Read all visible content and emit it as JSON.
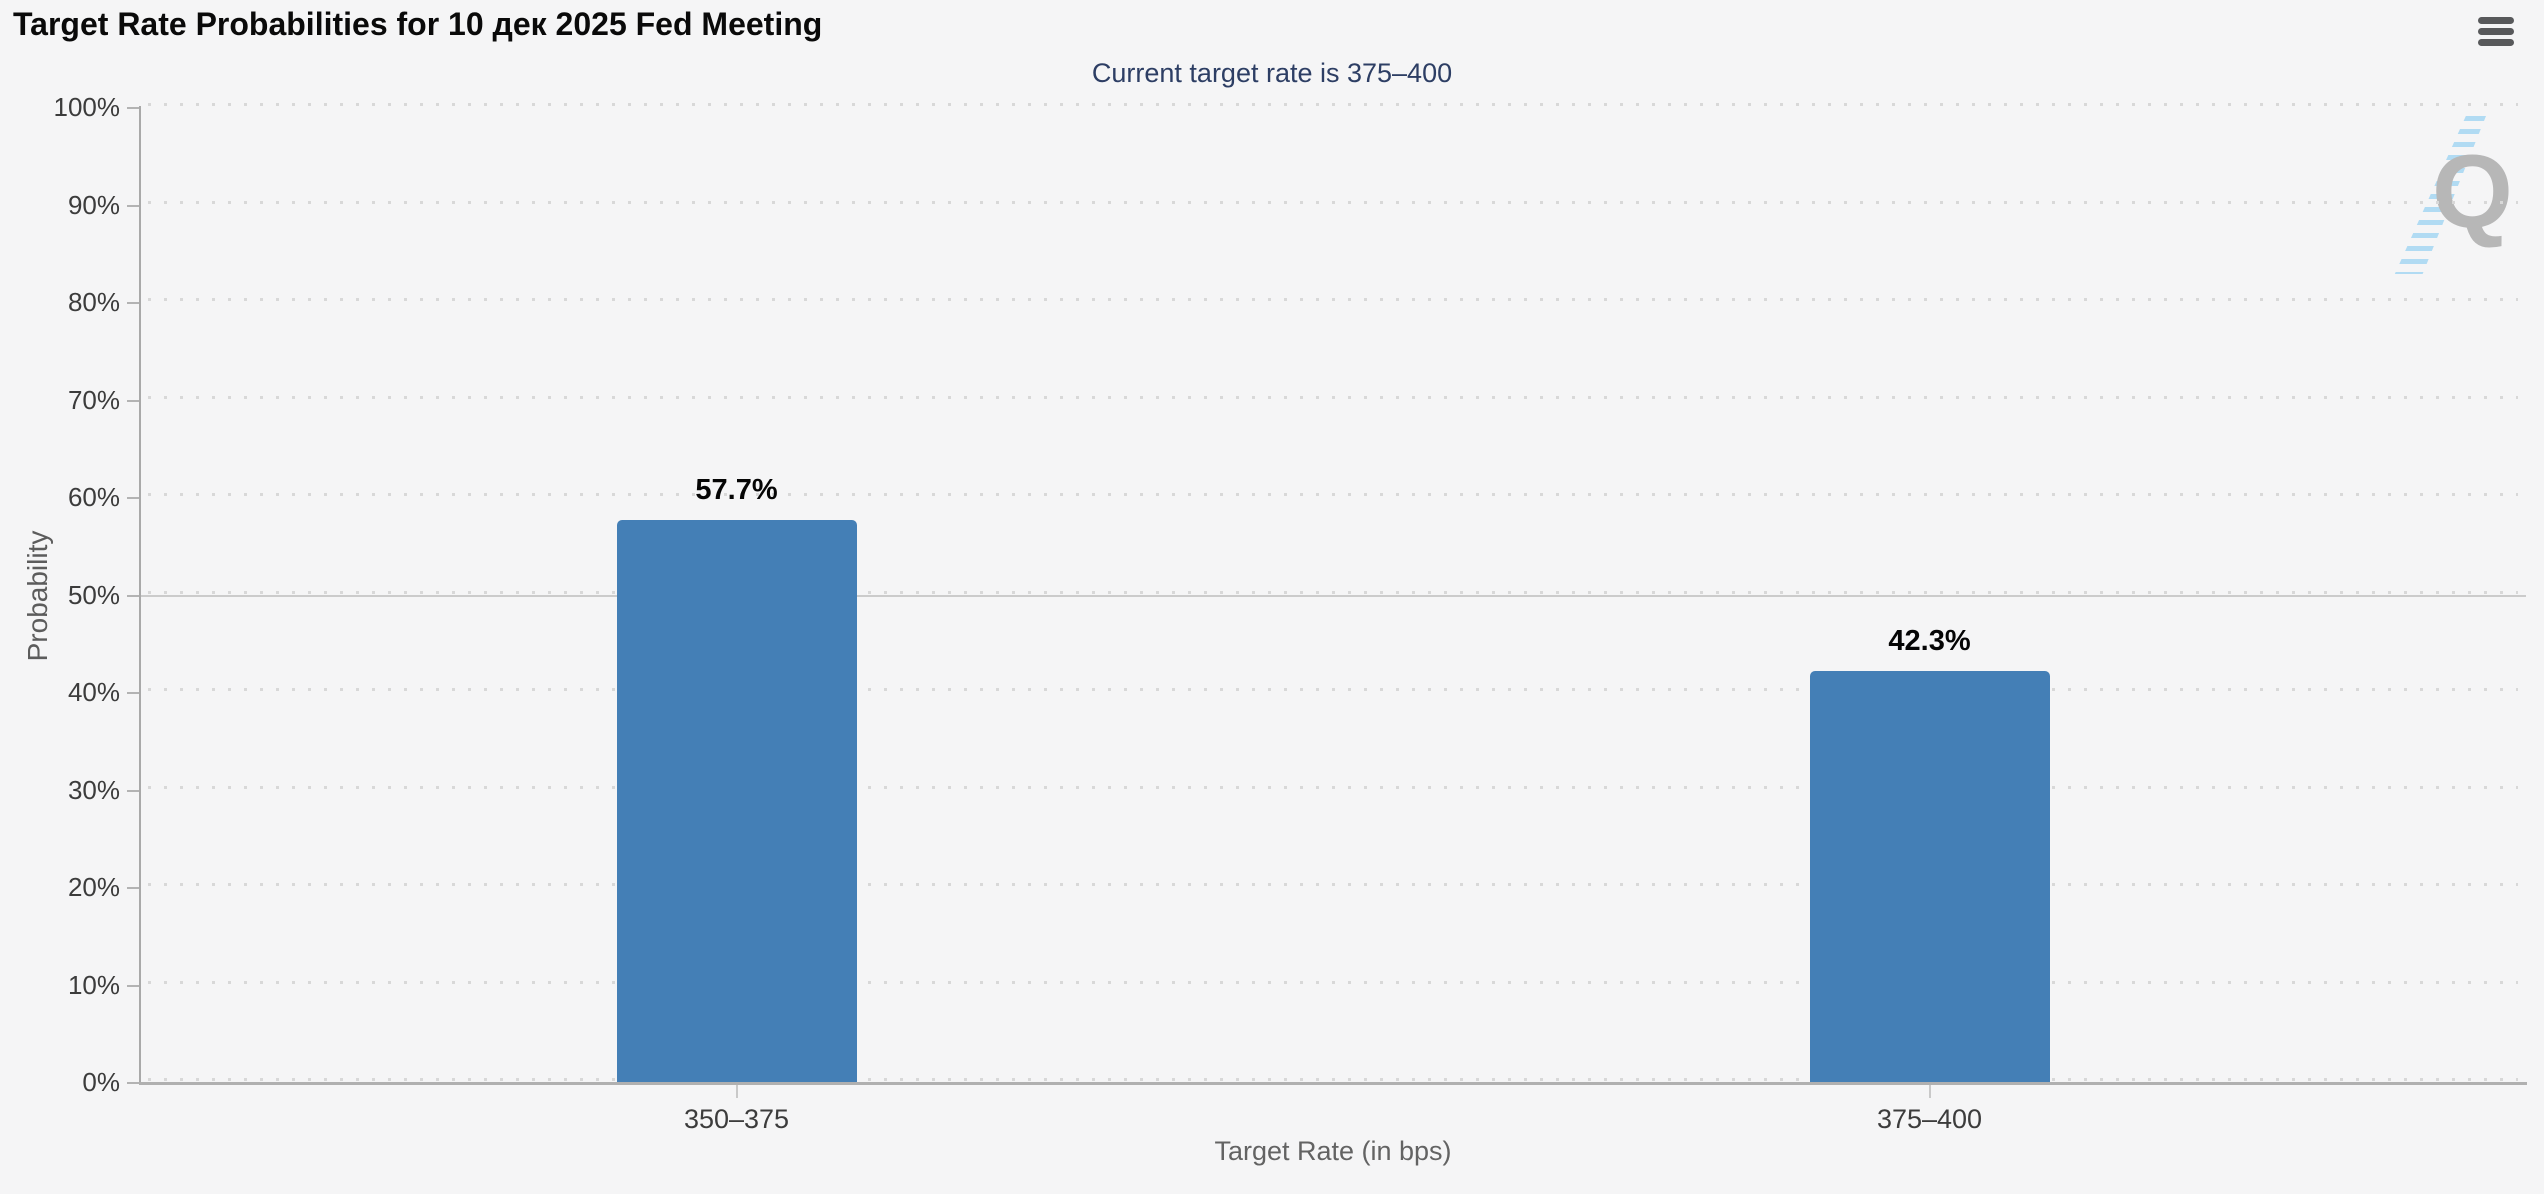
{
  "chart_data": {
    "type": "bar",
    "title": "Target Rate Probabilities for 10 дек 2025 Fed Meeting",
    "subtitle": "Current target rate is 375–400",
    "categories": [
      "350–375",
      "375–400"
    ],
    "values": [
      57.7,
      42.3
    ],
    "value_labels": [
      "57.7%",
      "42.3%"
    ],
    "xlabel": "Target Rate (in bps)",
    "ylabel": "Probability",
    "ylim": [
      0,
      100
    ],
    "ytick_step": 10,
    "ytick_labels": [
      "0%",
      "10%",
      "20%",
      "30%",
      "40%",
      "50%",
      "60%",
      "70%",
      "80%",
      "90%",
      "100%"
    ],
    "grid": "dotted-horizontal",
    "special_solid_gridline_at": 50,
    "legend": "none",
    "bar_color": "#447fb6"
  },
  "colors": {
    "bar": "#447fb6",
    "subtitle_text": "#2d3e64",
    "background": "#f5f5f6"
  },
  "watermark": {
    "letter": "Q"
  },
  "menu": {
    "icon": "hamburger-menu"
  }
}
